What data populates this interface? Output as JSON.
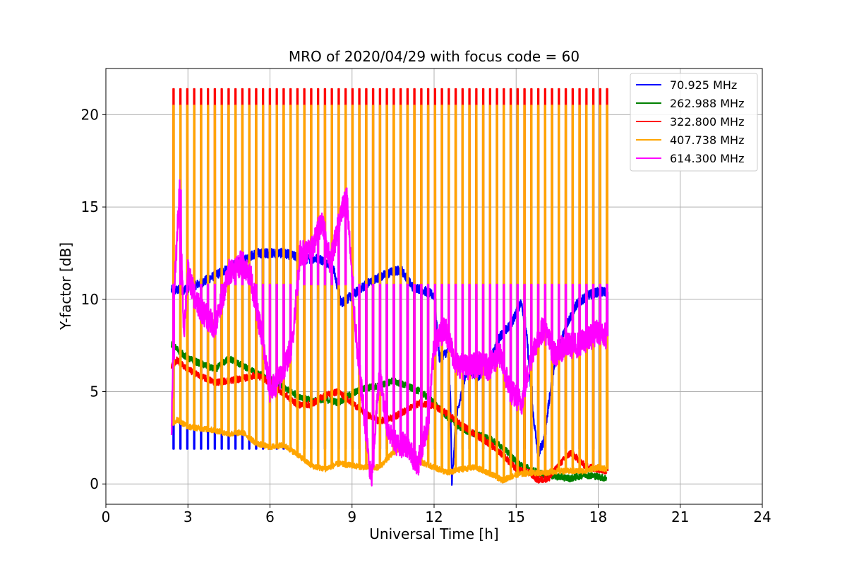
{
  "chart_data": {
    "type": "line",
    "title": "MRO of 2020/04/29 with focus code = 60",
    "xlabel": "Universal Time [h]",
    "ylabel": "Y-factor [dB]",
    "xlim": [
      0,
      24
    ],
    "ylim": [
      -1.1,
      22.5
    ],
    "xticks": [
      0,
      3,
      6,
      9,
      12,
      15,
      18,
      21,
      24
    ],
    "yticks": [
      0,
      5,
      10,
      15,
      20
    ],
    "grid": true,
    "legend_position": "top-right",
    "calibration_spikes": {
      "start": 2.45,
      "end": 18.3,
      "count": 64,
      "peak_values": {
        "322.800 MHz": 21.4,
        "407.738 MHz": 20.5,
        "614.300 MHz": 10.8,
        "70.925 MHz": 1.9
      }
    },
    "series": [
      {
        "name": " 70.925 MHz",
        "color": "#0000ff",
        "x": [
          2.4,
          2.8,
          3.5,
          4.5,
          5.5,
          6.5,
          7.2,
          7.8,
          8.3,
          8.6,
          9.0,
          9.5,
          10.0,
          10.5,
          10.8,
          11.2,
          11.6,
          12.0,
          12.2,
          12.5,
          12.6,
          12.65,
          12.8,
          13.2,
          13.6,
          14.0,
          14.4,
          14.8,
          15.2,
          15.4,
          15.6,
          15.8,
          16.0,
          16.4,
          16.8,
          17.2,
          17.6,
          18.0,
          18.3
        ],
        "y": [
          10.5,
          10.5,
          10.9,
          11.7,
          12.5,
          12.5,
          12.2,
          12.2,
          11.8,
          9.8,
          10.2,
          10.8,
          11.2,
          11.5,
          11.6,
          10.7,
          10.5,
          10.2,
          6.8,
          7.2,
          4.5,
          0.0,
          3.5,
          6.2,
          5.8,
          6.5,
          8.0,
          8.6,
          9.9,
          7.8,
          4.0,
          1.6,
          2.3,
          6.5,
          8.5,
          9.7,
          10.2,
          10.4,
          10.4
        ]
      },
      {
        "name": "262.988 MHz",
        "color": "#008000",
        "x": [
          2.4,
          2.6,
          3.0,
          3.5,
          4.0,
          4.5,
          5.0,
          5.5,
          6.0,
          6.5,
          7.0,
          7.5,
          8.0,
          8.5,
          9.0,
          9.5,
          10.0,
          10.5,
          11.0,
          11.5,
          12.0,
          12.5,
          13.0,
          13.5,
          14.0,
          14.5,
          15.0,
          15.5,
          16.0,
          16.5,
          17.0,
          17.5,
          18.0,
          18.3
        ],
        "y": [
          7.6,
          7.3,
          6.8,
          6.5,
          6.2,
          6.8,
          6.4,
          6.0,
          5.7,
          5.2,
          4.8,
          4.5,
          4.6,
          4.4,
          4.9,
          5.2,
          5.3,
          5.6,
          5.3,
          5.0,
          4.4,
          3.6,
          3.0,
          2.7,
          2.5,
          2.0,
          1.2,
          0.8,
          0.5,
          0.4,
          0.3,
          0.5,
          0.4,
          0.3
        ]
      },
      {
        "name": "322.800 MHz",
        "color": "#ff0000",
        "x": [
          2.4,
          2.6,
          3.0,
          3.5,
          4.0,
          4.5,
          5.0,
          5.5,
          6.0,
          6.5,
          7.0,
          7.5,
          8.0,
          8.5,
          9.0,
          9.5,
          10.0,
          10.5,
          11.0,
          11.5,
          12.0,
          12.5,
          13.0,
          13.5,
          14.0,
          14.5,
          15.0,
          15.5,
          15.8,
          16.2,
          16.6,
          17.0,
          17.5,
          18.0,
          18.3
        ],
        "y": [
          6.4,
          6.7,
          6.2,
          5.8,
          5.5,
          5.6,
          5.7,
          5.9,
          5.5,
          4.9,
          4.3,
          4.3,
          4.8,
          5.0,
          4.4,
          3.8,
          3.4,
          3.6,
          4.0,
          4.4,
          4.2,
          3.8,
          3.2,
          2.7,
          2.2,
          1.6,
          0.8,
          0.6,
          0.2,
          0.3,
          1.1,
          1.7,
          1.0,
          0.8,
          0.7
        ]
      },
      {
        "name": "407.738 MHz",
        "color": "#ffa500",
        "x": [
          2.4,
          2.6,
          3.0,
          3.5,
          4.0,
          4.5,
          5.0,
          5.5,
          6.0,
          6.5,
          7.0,
          7.5,
          8.0,
          8.5,
          9.0,
          9.5,
          10.0,
          10.5,
          11.0,
          11.5,
          12.0,
          12.5,
          13.0,
          13.5,
          14.0,
          14.5,
          15.0,
          15.5,
          16.0,
          16.5,
          17.0,
          17.5,
          18.0,
          18.3
        ],
        "y": [
          3.2,
          3.5,
          3.1,
          3.0,
          2.9,
          2.7,
          2.8,
          2.2,
          2.0,
          2.1,
          1.6,
          1.0,
          0.8,
          1.1,
          1.0,
          0.9,
          0.9,
          1.7,
          2.1,
          1.2,
          0.9,
          0.6,
          0.8,
          0.9,
          0.6,
          0.2,
          0.5,
          0.6,
          0.6,
          0.7,
          0.7,
          0.7,
          0.9,
          0.8
        ]
      },
      {
        "name": "614.300 MHz",
        "color": "#ff00ff",
        "x": [
          2.4,
          2.5,
          2.7,
          2.85,
          3.0,
          3.3,
          3.6,
          4.0,
          4.5,
          5.0,
          5.3,
          5.7,
          6.0,
          6.4,
          6.8,
          7.1,
          7.5,
          7.9,
          8.2,
          8.5,
          8.8,
          9.0,
          9.2,
          9.5,
          9.7,
          10.0,
          10.3,
          10.7,
          11.0,
          11.4,
          11.8,
          12.0,
          12.4,
          12.8,
          13.2,
          13.6,
          14.0,
          14.4,
          14.8,
          15.2,
          15.6,
          16.0,
          16.4,
          16.8,
          17.2,
          17.6,
          18.0,
          18.3
        ],
        "y": [
          3.0,
          10.5,
          16.0,
          8.2,
          11.5,
          9.8,
          9.2,
          8.5,
          11.5,
          12.0,
          11.2,
          8.0,
          5.0,
          5.8,
          7.5,
          12.5,
          12.6,
          14.3,
          12.0,
          14.0,
          15.8,
          11.0,
          7.0,
          3.0,
          0.0,
          6.0,
          3.0,
          2.0,
          2.2,
          1.0,
          3.5,
          7.5,
          8.5,
          6.5,
          6.3,
          6.5,
          6.3,
          7.0,
          5.0,
          4.4,
          7.2,
          8.5,
          7.0,
          7.5,
          7.5,
          7.8,
          8.3,
          8.0
        ]
      }
    ]
  }
}
